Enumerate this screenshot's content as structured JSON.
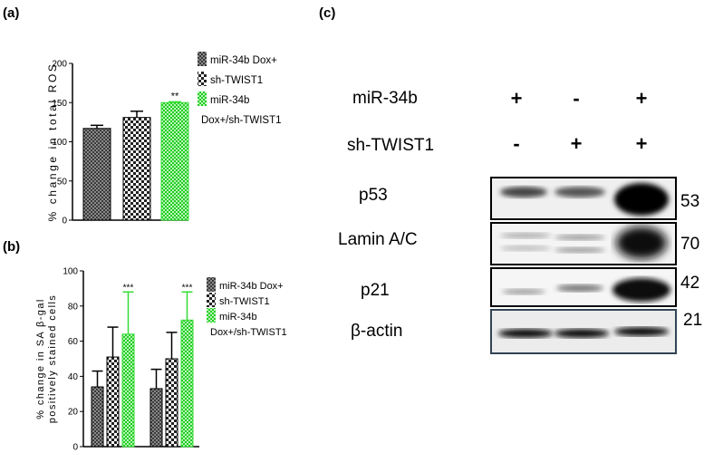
{
  "panels": {
    "a": "(a)",
    "b": "(b)",
    "c": "(c)"
  },
  "chart_data": [
    {
      "type": "bar",
      "ylabel": "% change in total ROS",
      "ylim": [
        0,
        200
      ],
      "yticks": [
        "0",
        "50",
        "100",
        "150",
        "200"
      ],
      "categories": [
        "miR-34b Dox+",
        "sh-TWIST1",
        "miR-34b Dox+/sh-TWIST1"
      ],
      "values": [
        117,
        131,
        150
      ],
      "errors": [
        4,
        8,
        1
      ],
      "significance": [
        "",
        "",
        "**"
      ],
      "legend": [
        "miR-34b Dox+",
        "sh-TWIST1",
        "miR-34b",
        "Dox+/sh-TWIST1"
      ],
      "legend_position": "right",
      "colors": [
        "#555555",
        "#333333",
        "#33dd33"
      ]
    },
    {
      "type": "bar",
      "ylabel": "% change in SA β-gal positively stained cells",
      "ylim": [
        0,
        100
      ],
      "yticks": [
        "0",
        "20",
        "40",
        "60",
        "80",
        "100"
      ],
      "groups": 2,
      "series": [
        {
          "name": "miR-34b Dox+",
          "values": [
            34,
            33
          ],
          "errors": [
            9,
            11
          ]
        },
        {
          "name": "sh-TWIST1",
          "values": [
            51,
            50
          ],
          "errors": [
            17,
            15
          ]
        },
        {
          "name": "miR-34b Dox+/sh-TWIST1",
          "values": [
            64,
            72
          ],
          "errors": [
            24,
            16
          ]
        }
      ],
      "significance": [
        "***",
        "***"
      ],
      "legend": [
        "miR-34b Dox+",
        "sh-TWIST1",
        "miR-34b",
        "Dox+/sh-TWIST1"
      ],
      "legend_position": "right",
      "colors": [
        "#555555",
        "#333333",
        "#33dd33"
      ]
    }
  ],
  "blot": {
    "conditions": [
      {
        "label": "miR-34b",
        "signs": [
          "+",
          "-",
          "+"
        ]
      },
      {
        "label": "sh-TWIST1",
        "signs": [
          "-",
          "+",
          "+"
        ]
      }
    ],
    "proteins": [
      {
        "name": "p53",
        "kda": "53"
      },
      {
        "name": "Lamin A/C",
        "kda": "70"
      },
      {
        "name": "p21",
        "kda": "42"
      },
      {
        "name": "β-actin",
        "kda": "21"
      }
    ]
  }
}
